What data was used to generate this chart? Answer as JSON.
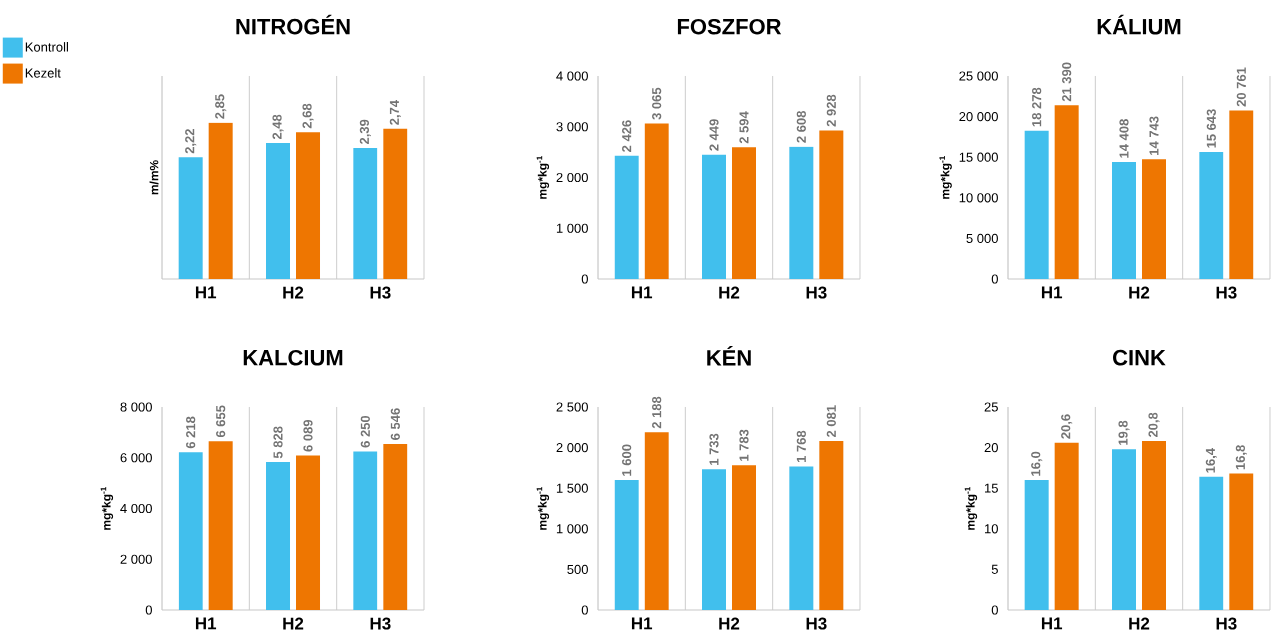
{
  "chart_data": [
    {
      "type": "bar",
      "title": "NITROGÉN",
      "ylabel": "m/m%",
      "categories": [
        "H1",
        "H2",
        "H3"
      ],
      "legend": "top left",
      "series": [
        {
          "name": "Kontroll",
          "color": "#41bfed",
          "values": [
            2.22,
            2.48,
            2.39
          ],
          "value_labels": [
            "2,22",
            "2,48",
            "2,39"
          ]
        },
        {
          "name": "Kezelt",
          "color": "#ee7601",
          "values": [
            2.85,
            2.68,
            2.74
          ],
          "value_labels": [
            "2,85",
            "2,68",
            "2,74"
          ]
        }
      ]
    },
    {
      "type": "bar",
      "title": "FOSZFOR",
      "ylabel": "mg*kg$^{-1}$",
      "categories": [
        "H1",
        "H2",
        "H3"
      ],
      "ylim": [
        0,
        4000
      ],
      "yticks": [
        0,
        {
          "value": 1000,
          "label": "1 000"
        },
        {
          "value": 2000,
          "label": "2 000"
        },
        {
          "value": 3000,
          "label": "3 000"
        },
        {
          "value": 4000,
          "label": "4 000"
        }
      ],
      "series": [
        {
          "color": "#41bfed",
          "values": [
            2426,
            2449,
            2608
          ],
          "value_labels": [
            "2 426",
            "2 449",
            "2 608"
          ]
        },
        {
          "color": "#ee7601",
          "values": [
            3065,
            2594,
            2928
          ],
          "value_labels": [
            "3 065",
            "2 594",
            "2 928"
          ]
        }
      ]
    },
    {
      "type": "bar",
      "title": "KÁLIUM",
      "ylabel": "mg*kg$^{-1}$",
      "categories": [
        "H1",
        "H2",
        "H3"
      ],
      "ylim": [
        0,
        25000
      ],
      "yticks": [
        0,
        {
          "value": 5000,
          "label": "5 000"
        },
        {
          "value": 10000,
          "label": "10 000"
        },
        {
          "value": 15000,
          "label": "15 000"
        },
        {
          "value": 20000,
          "label": "20 000"
        },
        {
          "value": 25000,
          "label": "25 000"
        }
      ],
      "series": [
        {
          "color": "#41bfed",
          "values": [
            18278,
            14408,
            15643
          ],
          "value_labels": [
            "18 278",
            "14 408",
            "15 643"
          ]
        },
        {
          "color": "#ee7601",
          "values": [
            21390,
            14743,
            20761
          ],
          "value_labels": [
            "21 390",
            "14 743",
            "20 761"
          ]
        }
      ]
    },
    {
      "type": "bar",
      "title": "KALCIUM",
      "ylabel": "mg*kg$^{-1}$",
      "categories": [
        "H1",
        "H2",
        "H3"
      ],
      "ylim": [
        0,
        8000
      ],
      "yticks": [
        0,
        {
          "value": 2000,
          "label": "2 000"
        },
        {
          "value": 4000,
          "label": "4 000"
        },
        {
          "value": 6000,
          "label": "6 000"
        },
        {
          "value": 8000,
          "label": "8 000"
        }
      ],
      "series": [
        {
          "color": "#41bfed",
          "values": [
            6218,
            5828,
            6250
          ],
          "value_labels": [
            "6 218",
            "5 828",
            "6 250"
          ]
        },
        {
          "color": "#ee7601",
          "values": [
            6655,
            6089,
            6546
          ],
          "value_labels": [
            "6 655",
            "6 089",
            "6 546"
          ]
        }
      ]
    },
    {
      "type": "bar",
      "title": "KÉN",
      "ylabel": "mg*kg$^{-1}$",
      "categories": [
        "H1",
        "H2",
        "H3"
      ],
      "ylim": [
        0,
        2500
      ],
      "yticks": [
        0,
        500,
        {
          "value": 1000,
          "label": "1 000"
        },
        {
          "value": 1500,
          "label": "1 500"
        },
        {
          "value": 2000,
          "label": "2 000"
        },
        {
          "value": 2500,
          "label": "2 500"
        }
      ],
      "series": [
        {
          "color": "#41bfed",
          "values": [
            1600,
            1733,
            1768
          ],
          "value_labels": [
            "1 600",
            "1 733",
            "1 768"
          ]
        },
        {
          "color": "#ee7601",
          "values": [
            2188,
            1783,
            2081
          ],
          "value_labels": [
            "2 188",
            "1 783",
            "2 081"
          ]
        }
      ]
    },
    {
      "type": "bar",
      "title": "CINK",
      "ylabel": "mg*kg$^{-1}$",
      "categories": [
        "H1",
        "H2",
        "H3"
      ],
      "ylim": [
        0,
        25
      ],
      "yticks": [
        0,
        5,
        10,
        15,
        20,
        25
      ],
      "series": [
        {
          "color": "#41bfed",
          "values": [
            16.0,
            19.8,
            16.4
          ],
          "value_labels": [
            "16,0",
            "19,8",
            "16,4"
          ]
        },
        {
          "color": "#ee7601",
          "values": [
            20.6,
            20.8,
            16.8
          ],
          "value_labels": [
            "20,6",
            "20,8",
            "16,8"
          ]
        }
      ]
    }
  ]
}
